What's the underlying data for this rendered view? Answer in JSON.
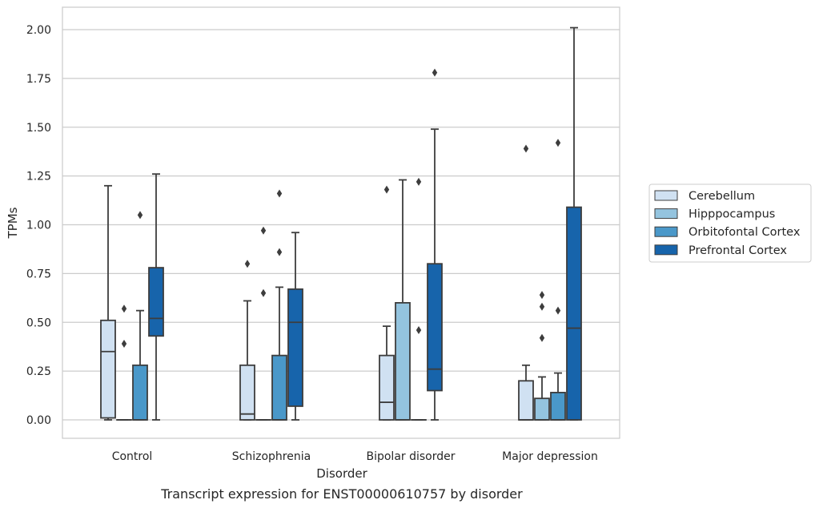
{
  "chart_data": {
    "type": "box",
    "title": "",
    "caption": "Transcript expression for ENST00000610757 by disorder",
    "xlabel": "Disorder",
    "ylabel": "TPMs",
    "ylim": [
      -0.1,
      2.11
    ],
    "yticks": [
      0.0,
      0.25,
      0.5,
      0.75,
      1.0,
      1.25,
      1.5,
      1.75,
      2.0
    ],
    "ytick_labels": [
      "0.00",
      "0.25",
      "0.50",
      "0.75",
      "1.00",
      "1.25",
      "1.50",
      "1.75",
      "2.00"
    ],
    "grid": "horizontal",
    "legend_position": "right",
    "categories": [
      "Control",
      "Schizophrenia",
      "Bipolar disorder",
      "Major depression"
    ],
    "series": [
      {
        "name": "Cerebellum",
        "color": "#d0e1f2",
        "boxes": [
          {
            "whislo": 0.0,
            "q1": 0.01,
            "med": 0.35,
            "q3": 0.51,
            "whishi": 1.2,
            "fliers": []
          },
          {
            "whislo": 0.0,
            "q1": 0.0,
            "med": 0.03,
            "q3": 0.28,
            "whishi": 0.61,
            "fliers": [
              0.8
            ]
          },
          {
            "whislo": 0.0,
            "q1": 0.0,
            "med": 0.09,
            "q3": 0.33,
            "whishi": 0.48,
            "fliers": [
              1.18
            ]
          },
          {
            "whislo": 0.0,
            "q1": 0.0,
            "med": 0.0,
            "q3": 0.2,
            "whishi": 0.28,
            "fliers": [
              1.39
            ]
          }
        ]
      },
      {
        "name": "Hipppocampus",
        "color": "#94c4df",
        "boxes": [
          {
            "whislo": 0.0,
            "q1": 0.0,
            "med": 0.0,
            "q3": 0.0,
            "whishi": 0.0,
            "fliers": [
              0.39,
              0.57
            ]
          },
          {
            "whislo": 0.0,
            "q1": 0.0,
            "med": 0.0,
            "q3": 0.0,
            "whishi": 0.0,
            "fliers": [
              0.65,
              0.97
            ]
          },
          {
            "whislo": 0.0,
            "q1": 0.0,
            "med": 0.0,
            "q3": 0.6,
            "whishi": 1.23,
            "fliers": []
          },
          {
            "whislo": 0.0,
            "q1": 0.0,
            "med": 0.0,
            "q3": 0.11,
            "whishi": 0.22,
            "fliers": [
              0.42,
              0.58,
              0.64
            ]
          }
        ]
      },
      {
        "name": "Orbitofontal Cortex",
        "color": "#4a98c9",
        "boxes": [
          {
            "whislo": 0.0,
            "q1": 0.0,
            "med": 0.0,
            "q3": 0.28,
            "whishi": 0.56,
            "fliers": [
              1.05
            ]
          },
          {
            "whislo": 0.0,
            "q1": 0.0,
            "med": 0.0,
            "q3": 0.33,
            "whishi": 0.68,
            "fliers": [
              0.86,
              1.16
            ]
          },
          {
            "whislo": 0.0,
            "q1": 0.0,
            "med": 0.0,
            "q3": 0.0,
            "whishi": 0.0,
            "fliers": [
              0.46,
              1.22
            ]
          },
          {
            "whislo": 0.0,
            "q1": 0.0,
            "med": 0.0,
            "q3": 0.14,
            "whishi": 0.24,
            "fliers": [
              0.56,
              1.42
            ]
          }
        ]
      },
      {
        "name": "Prefrontal Cortex",
        "color": "#1764ab",
        "boxes": [
          {
            "whislo": 0.0,
            "q1": 0.43,
            "med": 0.52,
            "q3": 0.78,
            "whishi": 1.26,
            "fliers": []
          },
          {
            "whislo": 0.0,
            "q1": 0.07,
            "med": 0.5,
            "q3": 0.67,
            "whishi": 0.96,
            "fliers": []
          },
          {
            "whislo": 0.0,
            "q1": 0.15,
            "med": 0.26,
            "q3": 0.8,
            "whishi": 1.49,
            "fliers": [
              1.78
            ]
          },
          {
            "whislo": 0.0,
            "q1": 0.0,
            "med": 0.47,
            "q3": 1.09,
            "whishi": 2.01,
            "fliers": []
          }
        ]
      }
    ]
  }
}
